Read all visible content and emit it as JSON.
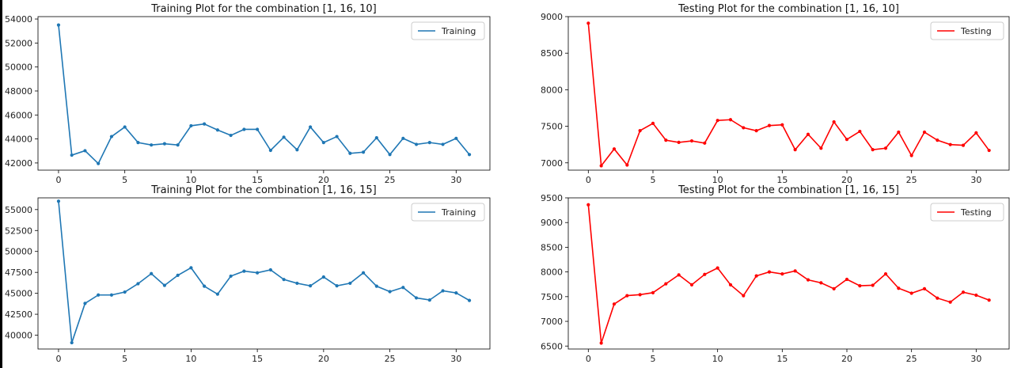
{
  "colors": {
    "training": "#1f77b4",
    "testing": "#ff0000"
  },
  "chart_data": [
    {
      "type": "line",
      "title": "Training Plot for the combination [1, 16, 10]",
      "x": [
        0,
        1,
        2,
        3,
        4,
        5,
        6,
        7,
        8,
        9,
        10,
        11,
        12,
        13,
        14,
        15,
        16,
        17,
        18,
        19,
        20,
        21,
        22,
        23,
        24,
        25,
        26,
        27,
        28,
        29,
        30,
        31
      ],
      "series": [
        {
          "name": "Training",
          "color": "#1f77b4",
          "values": [
            53500,
            42650,
            43020,
            41950,
            44200,
            45000,
            43700,
            43500,
            43600,
            43500,
            45100,
            45250,
            44750,
            44300,
            44800,
            44800,
            43050,
            44150,
            43100,
            45000,
            43700,
            44200,
            42800,
            42900,
            44100,
            42700,
            44050,
            43550,
            43700,
            43550,
            44050,
            42700
          ]
        }
      ],
      "xlim": [
        -1.55,
        32.55
      ],
      "ylim": [
        41400,
        54200
      ],
      "xticks": [
        0,
        5,
        10,
        15,
        20,
        25,
        30
      ],
      "yticks": [
        42000,
        44000,
        46000,
        48000,
        50000,
        52000,
        54000
      ],
      "grid": false,
      "legend": "top-right"
    },
    {
      "type": "line",
      "title": "Testing Plot for the combination [1, 16, 10]",
      "x": [
        0,
        1,
        2,
        3,
        4,
        5,
        6,
        7,
        8,
        9,
        10,
        11,
        12,
        13,
        14,
        15,
        16,
        17,
        18,
        19,
        20,
        21,
        22,
        23,
        24,
        25,
        26,
        27,
        28,
        29,
        30,
        31
      ],
      "series": [
        {
          "name": "Testing",
          "color": "#ff0000",
          "values": [
            8910,
            6960,
            7190,
            6970,
            7440,
            7540,
            7310,
            7280,
            7300,
            7270,
            7580,
            7590,
            7480,
            7440,
            7510,
            7520,
            7180,
            7390,
            7200,
            7560,
            7320,
            7430,
            7180,
            7200,
            7420,
            7100,
            7420,
            7310,
            7250,
            7240,
            7410,
            7170
          ]
        }
      ],
      "xlim": [
        -1.55,
        32.55
      ],
      "ylim": [
        6900,
        9000
      ],
      "xticks": [
        0,
        5,
        10,
        15,
        20,
        25,
        30
      ],
      "yticks": [
        7000,
        7500,
        8000,
        8500,
        9000
      ],
      "grid": false,
      "legend": "top-right"
    },
    {
      "type": "line",
      "title": "Training Plot for the combination [1, 16, 15]",
      "x": [
        0,
        1,
        2,
        3,
        4,
        5,
        6,
        7,
        8,
        9,
        10,
        11,
        12,
        13,
        14,
        15,
        16,
        17,
        18,
        19,
        20,
        21,
        22,
        23,
        24,
        25,
        26,
        27,
        28,
        29,
        30,
        31
      ],
      "series": [
        {
          "name": "Training",
          "color": "#1f77b4",
          "values": [
            56000,
            39100,
            43800,
            44800,
            44800,
            45150,
            46150,
            47350,
            45950,
            47150,
            48050,
            45850,
            44900,
            47050,
            47650,
            47450,
            47800,
            46650,
            46200,
            45900,
            46950,
            45900,
            46200,
            47450,
            45850,
            45200,
            45700,
            44450,
            44200,
            45300,
            45050,
            44150
          ]
        }
      ],
      "xlim": [
        -1.55,
        32.55
      ],
      "ylim": [
        38350,
        56400
      ],
      "xticks": [
        0,
        5,
        10,
        15,
        20,
        25,
        30
      ],
      "yticks": [
        40000,
        42500,
        45000,
        47500,
        50000,
        52500,
        55000
      ],
      "grid": false,
      "legend": "top-right"
    },
    {
      "type": "line",
      "title": "Testing Plot for the combination [1, 16, 15]",
      "x": [
        0,
        1,
        2,
        3,
        4,
        5,
        6,
        7,
        8,
        9,
        10,
        11,
        12,
        13,
        14,
        15,
        16,
        17,
        18,
        19,
        20,
        21,
        22,
        23,
        24,
        25,
        26,
        27,
        28,
        29,
        30,
        31
      ],
      "series": [
        {
          "name": "Testing",
          "color": "#ff0000",
          "values": [
            9360,
            6560,
            7350,
            7520,
            7540,
            7580,
            7760,
            7940,
            7740,
            7950,
            8080,
            7740,
            7520,
            7920,
            8000,
            7960,
            8020,
            7840,
            7780,
            7660,
            7850,
            7720,
            7730,
            7960,
            7670,
            7570,
            7660,
            7470,
            7390,
            7590,
            7530,
            7430
          ]
        }
      ],
      "xlim": [
        -1.55,
        32.55
      ],
      "ylim": [
        6440,
        9500
      ],
      "xticks": [
        0,
        5,
        10,
        15,
        20,
        25,
        30
      ],
      "yticks": [
        6500,
        7000,
        7500,
        8000,
        8500,
        9000,
        9500
      ],
      "grid": false,
      "legend": "top-right"
    }
  ]
}
